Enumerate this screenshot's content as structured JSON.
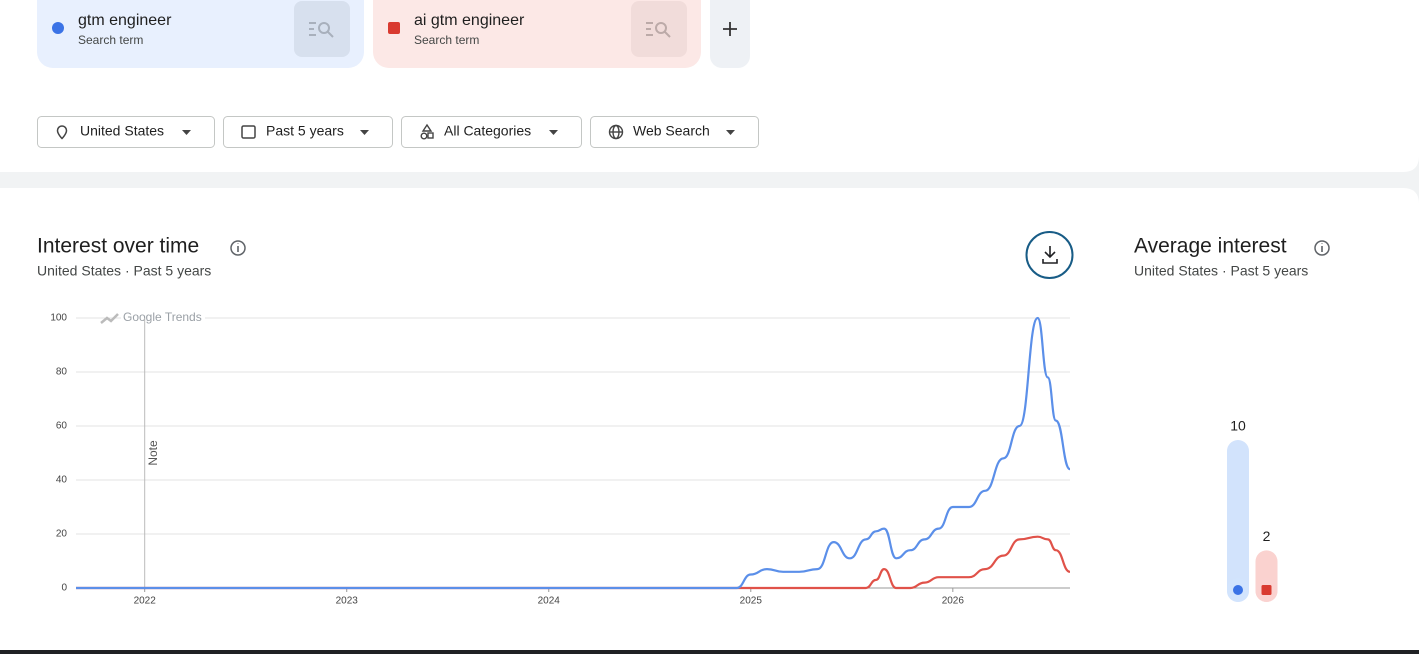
{
  "search_term_caption": "Search term",
  "filters": [
    "United States",
    "Past 5 years",
    "All Categories",
    "Web Search"
  ],
  "chart_data": [
    {
      "type": "line",
      "title": "Interest over time",
      "subtitle": "United States · Past 5 years",
      "watermark": "Google Trends",
      "annotations": [
        {
          "text": "Note",
          "x": 2022
        }
      ],
      "x": [
        2021.66,
        2024.93,
        2025.0,
        2025.08,
        2025.16,
        2025.24,
        2025.33,
        2025.41,
        2025.49,
        2025.57,
        2025.62,
        2025.66,
        2025.72,
        2025.79,
        2025.86,
        2025.93,
        2026.0,
        2026.08,
        2026.16,
        2026.25,
        2026.33,
        2026.42,
        2026.47,
        2026.51,
        2026.58
      ],
      "series": [
        {
          "name": "gtm engineer",
          "color": "#5b8fe9",
          "values": [
            0,
            0,
            5,
            7,
            6,
            6,
            7,
            17,
            11,
            18,
            21,
            22,
            11,
            14,
            18,
            22,
            30,
            30,
            36,
            48,
            60,
            100,
            78,
            62,
            44
          ]
        },
        {
          "name": "ai gtm engineer",
          "color": "#e05249",
          "values": [
            0,
            0,
            0,
            0,
            0,
            0,
            0,
            0,
            0,
            0,
            3,
            7,
            0,
            0,
            2,
            4,
            4,
            4,
            7,
            12,
            18,
            19,
            18,
            14,
            6
          ]
        }
      ],
      "xlim": [
        2021.66,
        2026.58
      ],
      "xticks": [
        2022,
        2023,
        2024,
        2025,
        2026
      ],
      "ylim": [
        0,
        100
      ],
      "yticks": [
        0,
        20,
        40,
        60,
        80,
        100
      ],
      "grid": true
    },
    {
      "type": "bar",
      "title": "Average interest",
      "subtitle": "United States · Past 5 years",
      "values": [
        10,
        2
      ],
      "colors": [
        "#3b73e6",
        "#d93a30"
      ],
      "track_colors": [
        "#d2e3fc",
        "#fad2cf"
      ]
    }
  ]
}
